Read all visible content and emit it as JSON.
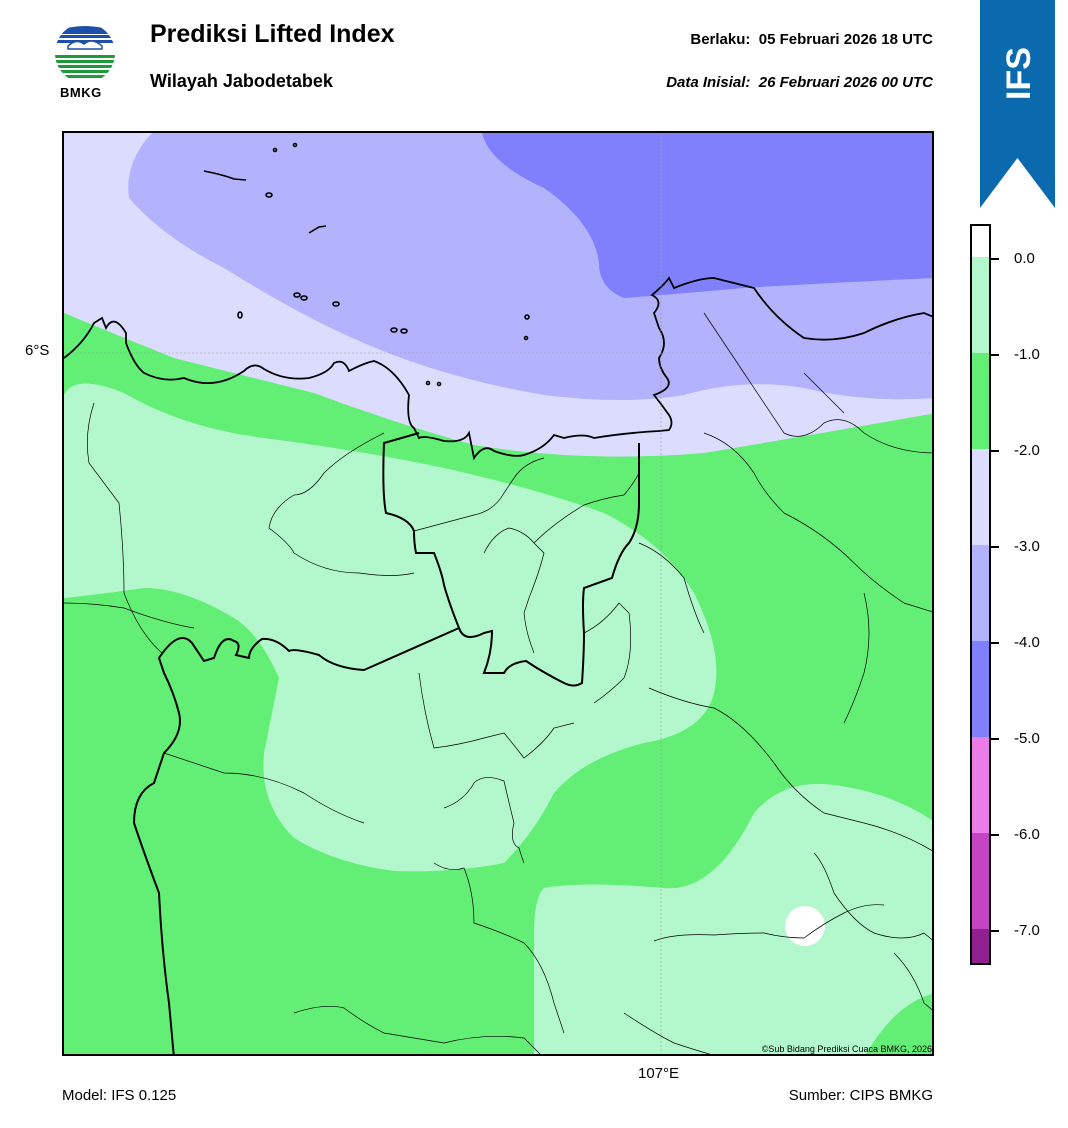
{
  "header": {
    "title": "Prediksi Lifted Index",
    "region": "Wilayah Jabodetabek",
    "valid_label": "Berlaku:",
    "valid_time": "05 Februari 2026 18 UTC",
    "init_label": "Data Inisial:",
    "init_time": "26 Februari 2026 00 UTC"
  },
  "logo": {
    "text": "BMKG",
    "icon": "bmkg-logo"
  },
  "badge": {
    "text": "IFS",
    "color": "#0a6aad"
  },
  "map": {
    "lat_label": "6°S",
    "lon_label": "107°E",
    "credit": "©Sub Bidang Prediksi Cuaca BMKG, 2026"
  },
  "footer": {
    "model": "Model: IFS 0.125",
    "source": "Sumber: CIPS BMKG"
  },
  "colorbar": {
    "labels": [
      "0.0",
      "-1.0",
      "-2.0",
      "-3.0",
      "-4.0",
      "-5.0",
      "-6.0",
      "-7.0"
    ],
    "colors": {
      "0_to_-1": "#b3f8cc",
      "-1_to_-2": "#63ee76",
      "-2_to_-3": "#dcdcfe",
      "-3_to_-4": "#b2b2fd",
      "-4_to_-5": "#8080fd",
      "-5_to_-6": "#ec7de8",
      "-6_to_-7": "#c444c4",
      "below_-7": "#902090"
    }
  }
}
